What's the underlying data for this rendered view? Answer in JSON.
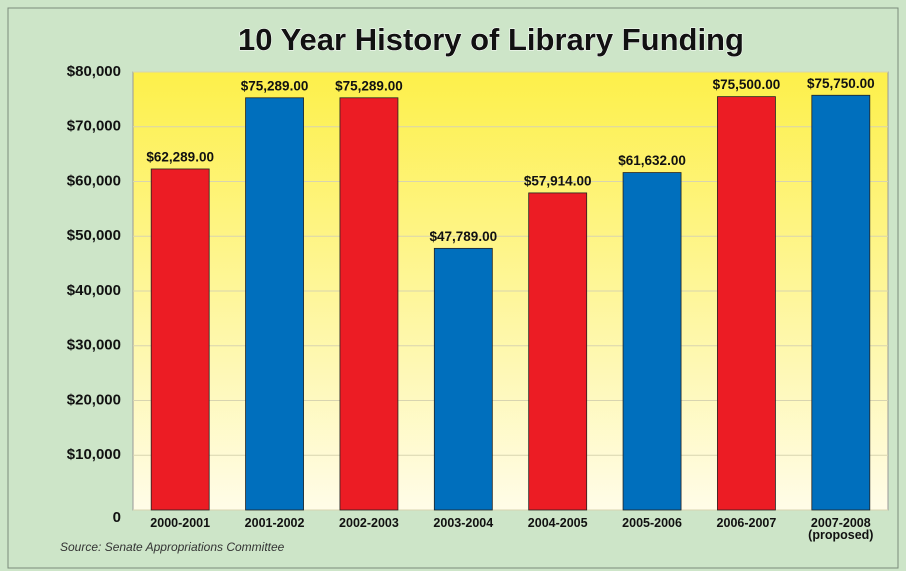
{
  "chart_data": {
    "type": "bar",
    "title": "10 Year History of Library Funding",
    "source": "Source:  Senate Appropriations Committee",
    "categories": [
      "2000-2001",
      "2001-2002",
      "2002-2003",
      "2003-2004",
      "2004-2005",
      "2005-2006",
      "2006-2007",
      "2007-2008\n(proposed)"
    ],
    "values": [
      62289,
      75289,
      75289,
      47789,
      57914,
      61632,
      75500,
      75750
    ],
    "value_labels": [
      "$62,289.00",
      "$75,289.00",
      "$75,289.00",
      "$47,789.00",
      "$57,914.00",
      "$61,632.00",
      "$75,500.00",
      "$75,750.00"
    ],
    "colors": [
      "#ec1c24",
      "#006fbd",
      "#ec1c24",
      "#006fbd",
      "#ec1c24",
      "#006fbd",
      "#ec1c24",
      "#006fbd"
    ],
    "ylim": [
      0,
      80000
    ],
    "yticks": [
      0,
      {
        "value": 10000,
        "label": "$10,000"
      },
      {
        "value": 20000,
        "label": "$20,000"
      },
      {
        "value": 30000,
        "label": "$30,000"
      },
      {
        "value": 40000,
        "label": "$40,000"
      },
      {
        "value": 50000,
        "label": "$50,000"
      },
      {
        "value": 60000,
        "label": "$60,000"
      },
      {
        "value": 70000,
        "label": "$70,000"
      },
      {
        "value": 80000,
        "label": "$80,000"
      }
    ],
    "grid": true
  }
}
